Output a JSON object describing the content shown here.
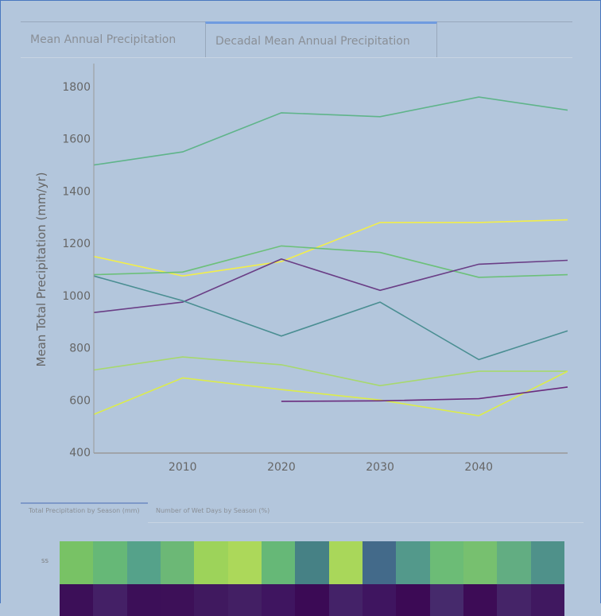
{
  "tabs": [
    {
      "label": "Mean Annual Precipitation",
      "active": false
    },
    {
      "label": "Decadal Mean Annual Precipitation",
      "active": true
    }
  ],
  "chart_data": {
    "type": "line",
    "ylabel": "Mean Total Precipitation (mm/yr)",
    "xlabel": "",
    "xlim": [
      2001,
      2049
    ],
    "ylim": [
      400,
      1850
    ],
    "xticks": [
      "2010",
      "2020",
      "2030",
      "2040"
    ],
    "yticks": [
      "400",
      "600",
      "800",
      "1000",
      "1200",
      "1400",
      "1600",
      "1800"
    ],
    "grid": false,
    "x": [
      2001,
      2010,
      2020,
      2030,
      2040,
      2049
    ],
    "series": [
      {
        "color": "#5fb48a",
        "values": [
          1500,
          1550,
          1700,
          1685,
          1760,
          1710
        ]
      },
      {
        "color": "#f2ee4a",
        "values": [
          1150,
          1075,
          1130,
          1280,
          1280,
          1290
        ]
      },
      {
        "color": "#6cc07a",
        "values": [
          1080,
          1090,
          1190,
          1165,
          1070,
          1080
        ]
      },
      {
        "color": "#6a3e86",
        "values": [
          935,
          975,
          1140,
          1020,
          1120,
          1135
        ]
      },
      {
        "color": "#4a8e92",
        "values": [
          1075,
          980,
          845,
          975,
          755,
          865
        ]
      },
      {
        "color": "#a7d86e",
        "values": [
          715,
          765,
          735,
          655,
          710,
          710
        ]
      },
      {
        "color": "#dcec4a",
        "values": [
          545,
          685,
          640,
          600,
          540,
          710
        ]
      },
      {
        "color": "#6a2c7e",
        "values": [
          null,
          null,
          595,
          597,
          605,
          650
        ]
      }
    ]
  },
  "subtabs": [
    {
      "label": "Total Precipitation by Season (mm)",
      "active": true
    },
    {
      "label": "Number of Wet Days by Season (%)",
      "active": false
    }
  ],
  "heatmap": {
    "row_label": "SS",
    "rows": [
      [
        "#78c265",
        "#66b877",
        "#55a28a",
        "#6cb876",
        "#9dd35a",
        "#acd85a",
        "#66b877",
        "#468185",
        "#a9d75a",
        "#436a8a",
        "#53998b",
        "#6cbc76",
        "#77c06f",
        "#62ad82",
        "#4f918a"
      ],
      [
        "#3c0f58",
        "#442066",
        "#3c0f58",
        "#3d1058",
        "#40195f",
        "#431f64",
        "#3f1560",
        "#3b0a55",
        "#442268",
        "#3f1560",
        "#3c0a55",
        "#462a6c",
        "#3d0c56",
        "#452468",
        "#401860"
      ]
    ]
  }
}
